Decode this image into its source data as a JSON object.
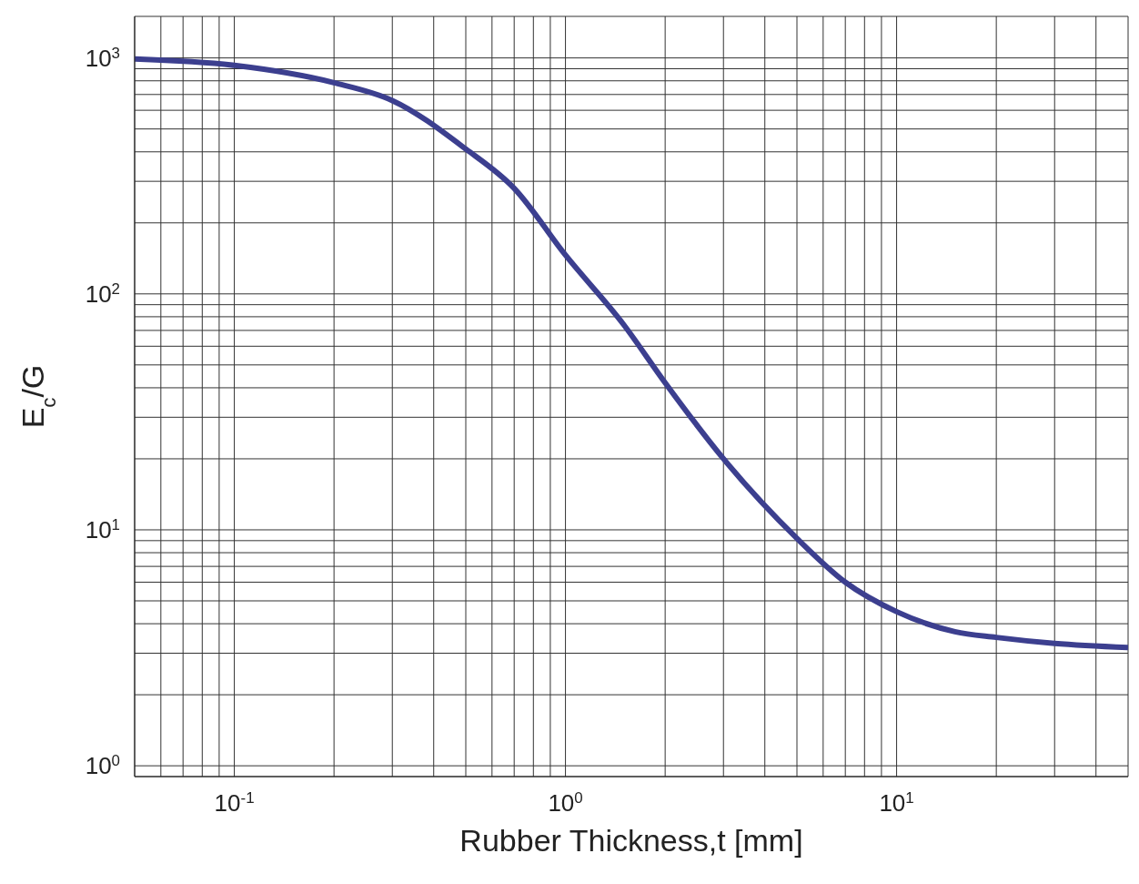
{
  "chart_data": {
    "type": "line",
    "xlabel": "Rubber Thickness,t [mm]",
    "ylabel": "E$_{c}$/G",
    "x": [
      0.05,
      0.1,
      0.2,
      0.3,
      0.5,
      0.7,
      1,
      1.5,
      2,
      3,
      5,
      7,
      10,
      15,
      20,
      30,
      50
    ],
    "series": [
      {
        "color": "#3c3f8f",
        "values": [
          990,
          930,
          785,
          660,
          411,
          280,
          146,
          74,
          42,
          20,
          9.2,
          6.0,
          4.5,
          3.7,
          3.5,
          3.3,
          3.17
        ]
      }
    ],
    "log": "xy",
    "grid": true,
    "legend": false,
    "marker": "none",
    "line_style": "solid",
    "xlim": [
      0.05,
      50
    ],
    "ylim": [
      0.9,
      1500
    ],
    "xticks": [
      {
        "value": 0.05,
        "label": null
      },
      {
        "value": 0.06,
        "label": null
      },
      {
        "value": 0.07,
        "label": null
      },
      {
        "value": 0.08,
        "label": null
      },
      {
        "value": 0.09,
        "label": null
      },
      {
        "value": 0.1,
        "label": "10$^{-1}$"
      },
      {
        "value": 0.2,
        "label": null
      },
      {
        "value": 0.3,
        "label": null
      },
      {
        "value": 0.4,
        "label": null
      },
      {
        "value": 0.5,
        "label": null
      },
      {
        "value": 0.6,
        "label": null
      },
      {
        "value": 0.7,
        "label": null
      },
      {
        "value": 0.8,
        "label": null
      },
      {
        "value": 0.9,
        "label": null
      },
      {
        "value": 1,
        "label": "10$^{0}$"
      },
      {
        "value": 2,
        "label": null
      },
      {
        "value": 3,
        "label": null
      },
      {
        "value": 4,
        "label": null
      },
      {
        "value": 5,
        "label": null
      },
      {
        "value": 6,
        "label": null
      },
      {
        "value": 7,
        "label": null
      },
      {
        "value": 8,
        "label": null
      },
      {
        "value": 9,
        "label": null
      },
      {
        "value": 10,
        "label": "10$^{1}$"
      },
      {
        "value": 20,
        "label": null
      },
      {
        "value": 30,
        "label": null
      },
      {
        "value": 40,
        "label": null
      },
      {
        "value": 50,
        "label": null
      }
    ],
    "yticks": [
      {
        "value": 1,
        "label": "10$^{0}$"
      },
      {
        "value": 2,
        "label": null
      },
      {
        "value": 3,
        "label": null
      },
      {
        "value": 4,
        "label": null
      },
      {
        "value": 5,
        "label": null
      },
      {
        "value": 6,
        "label": null
      },
      {
        "value": 7,
        "label": null
      },
      {
        "value": 8,
        "label": null
      },
      {
        "value": 9,
        "label": null
      },
      {
        "value": 10,
        "label": "10$^{1}$"
      },
      {
        "value": 20,
        "label": null
      },
      {
        "value": 30,
        "label": null
      },
      {
        "value": 40,
        "label": null
      },
      {
        "value": 50,
        "label": null
      },
      {
        "value": 60,
        "label": null
      },
      {
        "value": 70,
        "label": null
      },
      {
        "value": 80,
        "label": null
      },
      {
        "value": 90,
        "label": null
      },
      {
        "value": 100,
        "label": "10$^{2}$"
      },
      {
        "value": 200,
        "label": null
      },
      {
        "value": 300,
        "label": null
      },
      {
        "value": 400,
        "label": null
      },
      {
        "value": 500,
        "label": null
      },
      {
        "value": 600,
        "label": null
      },
      {
        "value": 700,
        "label": null
      },
      {
        "value": 800,
        "label": null
      },
      {
        "value": 900,
        "label": null
      },
      {
        "value": 1000,
        "label": "10$^{3}$"
      }
    ]
  }
}
